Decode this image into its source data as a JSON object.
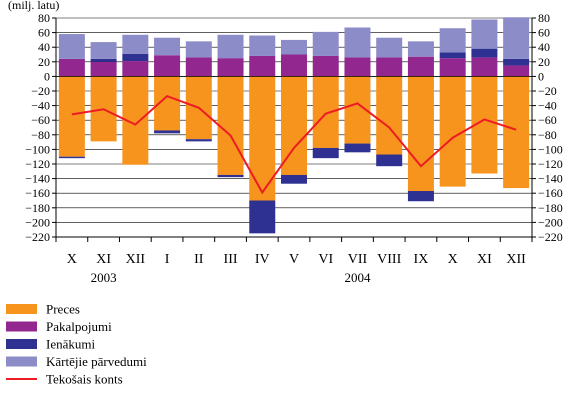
{
  "chart_data": {
    "type": "bar",
    "unit_label": "(milj. latu)",
    "categories": [
      "X",
      "XI",
      "XII",
      "I",
      "II",
      "III",
      "IV",
      "V",
      "VI",
      "VII",
      "VIII",
      "IX",
      "X",
      "XI",
      "XII"
    ],
    "year_labels": [
      {
        "text": "2003",
        "category_index": 1
      },
      {
        "text": "2004",
        "category_index": 9
      }
    ],
    "ylim": [
      -220,
      80
    ],
    "yticks": [
      80,
      60,
      40,
      20,
      0,
      -20,
      -40,
      -60,
      -80,
      -100,
      -120,
      -140,
      -160,
      -180,
      -200,
      -220
    ],
    "grid": true,
    "legend_position": "bottom-left",
    "series": [
      {
        "name": "Preces",
        "kind": "bar",
        "color": "#f7941d",
        "values": [
          -110,
          -89,
          -121,
          -74,
          -86,
          -135,
          -170,
          -135,
          -98,
          -92,
          -107,
          -157,
          -151,
          -133,
          -153
        ]
      },
      {
        "name": "Pakalpojumi",
        "kind": "bar",
        "color": "#92278f",
        "values": [
          24,
          20,
          21,
          29,
          26,
          25,
          28,
          30,
          28,
          26,
          26,
          27,
          25,
          26,
          15
        ]
      },
      {
        "name": "Ienākumi",
        "kind": "bar",
        "color": "#2e3192",
        "values": [
          -2,
          4,
          10,
          -4,
          -3,
          -3,
          -45,
          -12,
          -14,
          -12,
          -16,
          -14,
          8,
          12,
          9
        ]
      },
      {
        "name": "Kārtējie pārvedumi",
        "kind": "bar",
        "color": "#8c8cc8",
        "values": [
          34,
          23,
          26,
          24,
          22,
          32,
          28,
          20,
          33,
          41,
          27,
          21,
          33,
          40,
          57
        ]
      },
      {
        "name": "Tekošais konts",
        "kind": "line",
        "color": "#ed1c24",
        "values": [
          -52,
          -45,
          -66,
          -27,
          -43,
          -81,
          -159,
          -98,
          -51,
          -37,
          -70,
          -123,
          -84,
          -59,
          -73
        ]
      }
    ]
  }
}
